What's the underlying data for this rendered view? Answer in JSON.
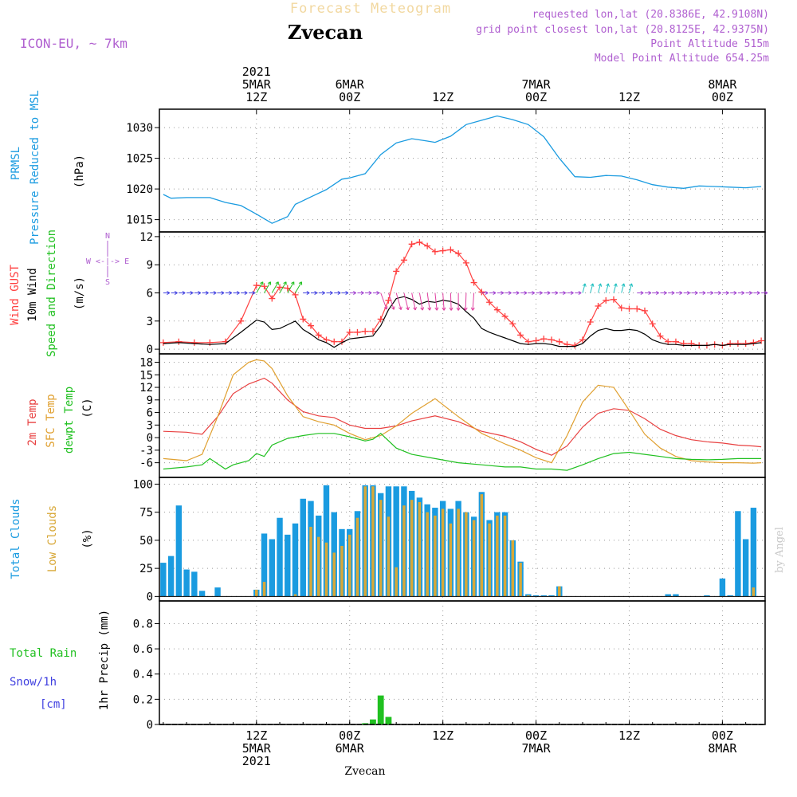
{
  "header": {
    "forecast_title": "Forecast Meteogram",
    "location": "Zvecan",
    "model": "ICON-EU, ~ 7km",
    "requested": "requested lon,lat (20.8386E, 42.9108N)",
    "grid_point": "grid point closest lon,lat (20.8125E, 42.9375N)",
    "point_altitude": "Point Altitude 515m",
    "model_altitude": "Model Point Altitude 654.25m",
    "credit": "by Angel",
    "footer_location": "Zvecan"
  },
  "time_axis": {
    "top_ticks": [
      {
        "h": 12,
        "lines": [
          "2021",
          "5MAR",
          "12Z"
        ]
      },
      {
        "h": 24,
        "lines": [
          "6MAR",
          "00Z"
        ]
      },
      {
        "h": 36,
        "lines": [
          "12Z"
        ]
      },
      {
        "h": 48,
        "lines": [
          "7MAR",
          "00Z"
        ]
      },
      {
        "h": 60,
        "lines": [
          "12Z"
        ]
      },
      {
        "h": 72,
        "lines": [
          "8MAR",
          "00Z"
        ]
      }
    ],
    "bottom_ticks": [
      {
        "h": 12,
        "lines": [
          "12Z",
          "5MAR",
          "2021"
        ]
      },
      {
        "h": 24,
        "lines": [
          "00Z",
          "6MAR"
        ]
      },
      {
        "h": 36,
        "lines": [
          "12Z"
        ]
      },
      {
        "h": 48,
        "lines": [
          "00Z",
          "7MAR"
        ]
      },
      {
        "h": 60,
        "lines": [
          "12Z"
        ]
      },
      {
        "h": 72,
        "lines": [
          "00Z",
          "8MAR"
        ]
      }
    ]
  },
  "panels": {
    "pressure": {
      "label1": "PRMSL",
      "label2": "Pressure Reduced to MSL",
      "unit": "(hPa)"
    },
    "wind": {
      "label1": "Wind GUST",
      "label2": "10m Wind",
      "label3": "Speed and Direction",
      "unit": "(m/s)",
      "compass_n": "N",
      "compass_s": "S",
      "compass_we": "W <-|-> E"
    },
    "temp": {
      "label1": "2m Temp",
      "label2": "SFC Temp",
      "label3": "dewpt Temp",
      "unit": "(C)"
    },
    "clouds": {
      "label1": "Total Clouds",
      "label2": "Low Clouds",
      "unit": "(%)"
    },
    "precip": {
      "label1": "Total  Rain",
      "label2": "Snow/1h",
      "label3": "[cm]",
      "unit": "1hr Precip (mm)"
    }
  },
  "colors": {
    "pressure": "#1a9be0",
    "gust": "#ff4040",
    "wind": "#000000",
    "t2m": "#e84040",
    "sfc": "#e0a030",
    "dewpt": "#20c020",
    "total_clouds": "#1a9be0",
    "low_clouds": "#d8a838",
    "rain": "#20c020",
    "snow": "#4040e0",
    "magenta_label": "#b060d0"
  },
  "chart_data": [
    {
      "type": "line",
      "name": "pressure",
      "ylim": [
        1013,
        1033
      ],
      "yticks": [
        1015,
        1020,
        1025,
        1030
      ],
      "series": [
        {
          "name": "PRMSL",
          "x": [
            0,
            1,
            3,
            6,
            8,
            10,
            12,
            14,
            16,
            17,
            19,
            21,
            23,
            24,
            26,
            28,
            30,
            32,
            34,
            35,
            37,
            39,
            41,
            43,
            45,
            47,
            49,
            51,
            53,
            55,
            57,
            59,
            61,
            63,
            65,
            67,
            69,
            71,
            73,
            75,
            77
          ],
          "values": [
            1019.1,
            1018.5,
            1018.6,
            1018.6,
            1017.8,
            1017.3,
            1015.9,
            1014.4,
            1015.5,
            1017.5,
            1018.7,
            1019.9,
            1021.6,
            1021.8,
            1022.5,
            1025.6,
            1027.5,
            1028.2,
            1027.8,
            1027.6,
            1028.6,
            1030.5,
            1031.2,
            1031.9,
            1031.3,
            1030.5,
            1028.5,
            1025.0,
            1022.0,
            1021.9,
            1022.2,
            1022.1,
            1021.5,
            1020.7,
            1020.3,
            1020.1,
            1020.5,
            1020.4,
            1020.3,
            1020.2,
            1020.4
          ]
        }
      ]
    },
    {
      "type": "line",
      "name": "wind",
      "ylim": [
        -0.5,
        12.5
      ],
      "yticks": [
        0,
        3,
        6,
        9,
        12
      ],
      "series": [
        {
          "name": "Wind GUST",
          "x": [
            0,
            2,
            4,
            6,
            8,
            10,
            12,
            13,
            14,
            15,
            16,
            17,
            18,
            19,
            20,
            21,
            22,
            23,
            24,
            25,
            26,
            27,
            28,
            29,
            30,
            31,
            32,
            33,
            34,
            35,
            36,
            37,
            38,
            39,
            40,
            41,
            42,
            43,
            44,
            45,
            46,
            47,
            48,
            49,
            50,
            51,
            52,
            53,
            54,
            55,
            56,
            57,
            58,
            59,
            60,
            61,
            62,
            63,
            64,
            65,
            66,
            67,
            68,
            69,
            70,
            71,
            72,
            73,
            74,
            75,
            76,
            77
          ],
          "values": [
            0.7,
            0.8,
            0.7,
            0.7,
            0.8,
            3.0,
            6.8,
            6.7,
            5.4,
            6.6,
            6.5,
            5.8,
            3.2,
            2.5,
            1.5,
            1.0,
            0.8,
            0.8,
            1.8,
            1.8,
            1.9,
            1.9,
            3.2,
            5.2,
            8.3,
            9.5,
            11.2,
            11.4,
            11.0,
            10.4,
            10.5,
            10.6,
            10.2,
            9.2,
            7.1,
            6.1,
            5.0,
            4.2,
            3.5,
            2.7,
            1.5,
            0.8,
            0.9,
            1.1,
            1.0,
            0.8,
            0.5,
            0.4,
            1.0,
            2.9,
            4.6,
            5.2,
            5.3,
            4.4,
            4.3,
            4.3,
            4.1,
            2.7,
            1.4,
            0.8,
            0.8,
            0.6,
            0.6,
            0.4,
            0.4,
            0.5,
            0.4,
            0.6,
            0.6,
            0.6,
            0.7,
            0.9
          ]
        },
        {
          "name": "10m Wind",
          "x": [
            0,
            2,
            4,
            6,
            8,
            10,
            12,
            13,
            14,
            15,
            16,
            17,
            18,
            19,
            20,
            21,
            22,
            23,
            24,
            25,
            26,
            27,
            28,
            29,
            30,
            31,
            32,
            33,
            34,
            35,
            36,
            37,
            38,
            39,
            40,
            41,
            42,
            43,
            44,
            45,
            46,
            47,
            48,
            49,
            50,
            51,
            52,
            53,
            54,
            55,
            56,
            57,
            58,
            59,
            60,
            61,
            62,
            63,
            64,
            65,
            66,
            67,
            68,
            69,
            70,
            71,
            72,
            73,
            74,
            75,
            76,
            77
          ],
          "values": [
            0.6,
            0.7,
            0.6,
            0.5,
            0.6,
            1.8,
            3.1,
            2.9,
            2.1,
            2.2,
            2.6,
            3.0,
            2.1,
            1.6,
            1.0,
            0.7,
            0.2,
            0.7,
            1.1,
            1.2,
            1.3,
            1.4,
            2.5,
            4.2,
            5.4,
            5.6,
            5.3,
            4.8,
            5.1,
            5.0,
            5.2,
            5.1,
            4.8,
            4.0,
            3.3,
            2.2,
            1.8,
            1.5,
            1.2,
            0.9,
            0.6,
            0.5,
            0.6,
            0.6,
            0.5,
            0.3,
            0.3,
            0.3,
            0.6,
            1.4,
            2.0,
            2.2,
            2.0,
            2.0,
            2.1,
            2.0,
            1.6,
            1.0,
            0.7,
            0.5,
            0.5,
            0.4,
            0.4,
            0.4,
            0.4,
            0.5,
            0.4,
            0.5,
            0.5,
            0.5,
            0.6,
            0.7
          ]
        }
      ]
    },
    {
      "type": "line",
      "name": "temperature",
      "ylim": [
        -9.5,
        20
      ],
      "yticks": [
        -6,
        -3,
        0,
        3,
        6,
        9,
        12,
        15,
        18
      ],
      "series": [
        {
          "name": "2m Temp",
          "x": [
            0,
            3,
            5,
            7,
            9,
            11,
            12,
            13,
            14,
            16,
            18,
            20,
            22,
            24,
            26,
            28,
            30,
            32,
            35,
            38,
            41,
            44,
            46,
            48,
            50,
            52,
            54,
            56,
            58,
            60,
            62,
            64,
            66,
            68,
            70,
            72,
            74,
            76,
            77
          ],
          "values": [
            1.5,
            1.3,
            0.8,
            5.0,
            10.5,
            12.8,
            13.5,
            14.2,
            13.0,
            9.0,
            6.2,
            5.2,
            4.8,
            3.0,
            2.2,
            2.2,
            2.8,
            4.0,
            5.2,
            3.8,
            1.5,
            0.3,
            -1.0,
            -2.8,
            -4.2,
            -2.0,
            2.5,
            5.8,
            6.9,
            6.5,
            4.5,
            2.0,
            0.5,
            -0.5,
            -1.0,
            -1.3,
            -1.8,
            -2.0,
            -2.2
          ]
        },
        {
          "name": "SFC Temp",
          "x": [
            0,
            3,
            5,
            7,
            9,
            11,
            12,
            13,
            14,
            16,
            18,
            20,
            22,
            24,
            26,
            28,
            30,
            32,
            35,
            38,
            41,
            44,
            46,
            48,
            50,
            52,
            54,
            56,
            58,
            60,
            62,
            64,
            66,
            68,
            70,
            72,
            74,
            76,
            77
          ],
          "values": [
            -5.0,
            -5.5,
            -4.0,
            5.0,
            15.0,
            18.0,
            18.6,
            18.3,
            16.5,
            10.0,
            5.0,
            3.8,
            3.0,
            1.0,
            -0.5,
            0.5,
            2.8,
            5.8,
            9.3,
            5.0,
            1.0,
            -1.5,
            -3.0,
            -4.8,
            -6.0,
            0.5,
            8.5,
            12.5,
            12.0,
            6.5,
            0.8,
            -2.5,
            -4.5,
            -5.5,
            -5.8,
            -6.0,
            -6.0,
            -6.1,
            -6.0
          ]
        },
        {
          "name": "dewpt Temp",
          "x": [
            0,
            3,
            5,
            6,
            8,
            9,
            11,
            12,
            13,
            14,
            16,
            18,
            20,
            22,
            24,
            26,
            27,
            28,
            30,
            32,
            35,
            38,
            41,
            44,
            46,
            48,
            50,
            52,
            54,
            56,
            58,
            60,
            62,
            64,
            66,
            68,
            70,
            72,
            74,
            76,
            77
          ],
          "values": [
            -7.5,
            -7.0,
            -6.5,
            -5.0,
            -7.5,
            -6.5,
            -5.5,
            -3.8,
            -4.5,
            -1.8,
            -0.2,
            0.5,
            1.0,
            1.0,
            0.2,
            -0.8,
            -0.4,
            1.0,
            -2.5,
            -4.0,
            -5.0,
            -6.0,
            -6.5,
            -7.0,
            -7.0,
            -7.5,
            -7.5,
            -7.8,
            -6.5,
            -5.0,
            -3.8,
            -3.5,
            -4.0,
            -4.5,
            -5.0,
            -5.2,
            -5.3,
            -5.2,
            -5.0,
            -5.0,
            -5.0
          ]
        }
      ]
    },
    {
      "type": "bar",
      "name": "clouds",
      "ylim": [
        -4,
        106
      ],
      "yticks": [
        0,
        25,
        50,
        75,
        100
      ],
      "series": [
        {
          "name": "Total Clouds",
          "values": [
            30,
            36,
            81,
            24,
            22,
            5,
            0,
            8,
            0,
            0,
            0,
            0,
            6,
            56,
            51,
            70,
            55,
            65,
            87,
            85,
            72,
            99,
            75,
            60,
            60,
            76,
            99,
            99,
            92,
            98,
            98,
            98,
            94,
            88,
            82,
            79,
            85,
            78,
            85,
            75,
            71,
            93,
            68,
            75,
            75,
            50,
            31,
            2,
            1,
            1,
            1,
            9,
            0,
            0,
            0,
            0,
            0,
            0,
            0,
            0,
            0,
            0,
            0,
            0,
            0,
            2,
            2,
            0,
            0,
            0,
            1,
            0,
            16,
            1,
            76,
            51,
            79
          ]
        },
        {
          "name": "Low Clouds",
          "values": [
            0,
            0,
            0,
            0,
            0,
            0,
            0,
            0,
            0,
            0,
            0,
            0,
            6,
            13,
            0,
            0,
            0,
            2,
            0,
            62,
            53,
            48,
            39,
            45,
            55,
            70,
            98,
            98,
            86,
            71,
            26,
            81,
            86,
            84,
            75,
            72,
            78,
            65,
            78,
            75,
            68,
            91,
            65,
            72,
            72,
            50,
            30,
            1,
            0,
            0,
            0,
            9,
            0,
            0,
            0,
            0,
            0,
            0,
            0,
            0,
            0,
            0,
            0,
            0,
            0,
            0,
            0,
            0,
            0,
            0,
            0,
            0,
            0,
            0,
            0,
            0,
            8
          ]
        }
      ]
    },
    {
      "type": "bar",
      "name": "precipitation",
      "ylim": [
        0,
        0.98
      ],
      "yticks": [
        0,
        0.2,
        0.4,
        0.6,
        0.8
      ],
      "series": [
        {
          "name": "Total Rain",
          "x": [
            26,
            27,
            28,
            29
          ],
          "values": [
            0.01,
            0.04,
            0.23,
            0.06
          ]
        },
        {
          "name": "Snow/1h",
          "x": [],
          "values": []
        }
      ]
    }
  ]
}
